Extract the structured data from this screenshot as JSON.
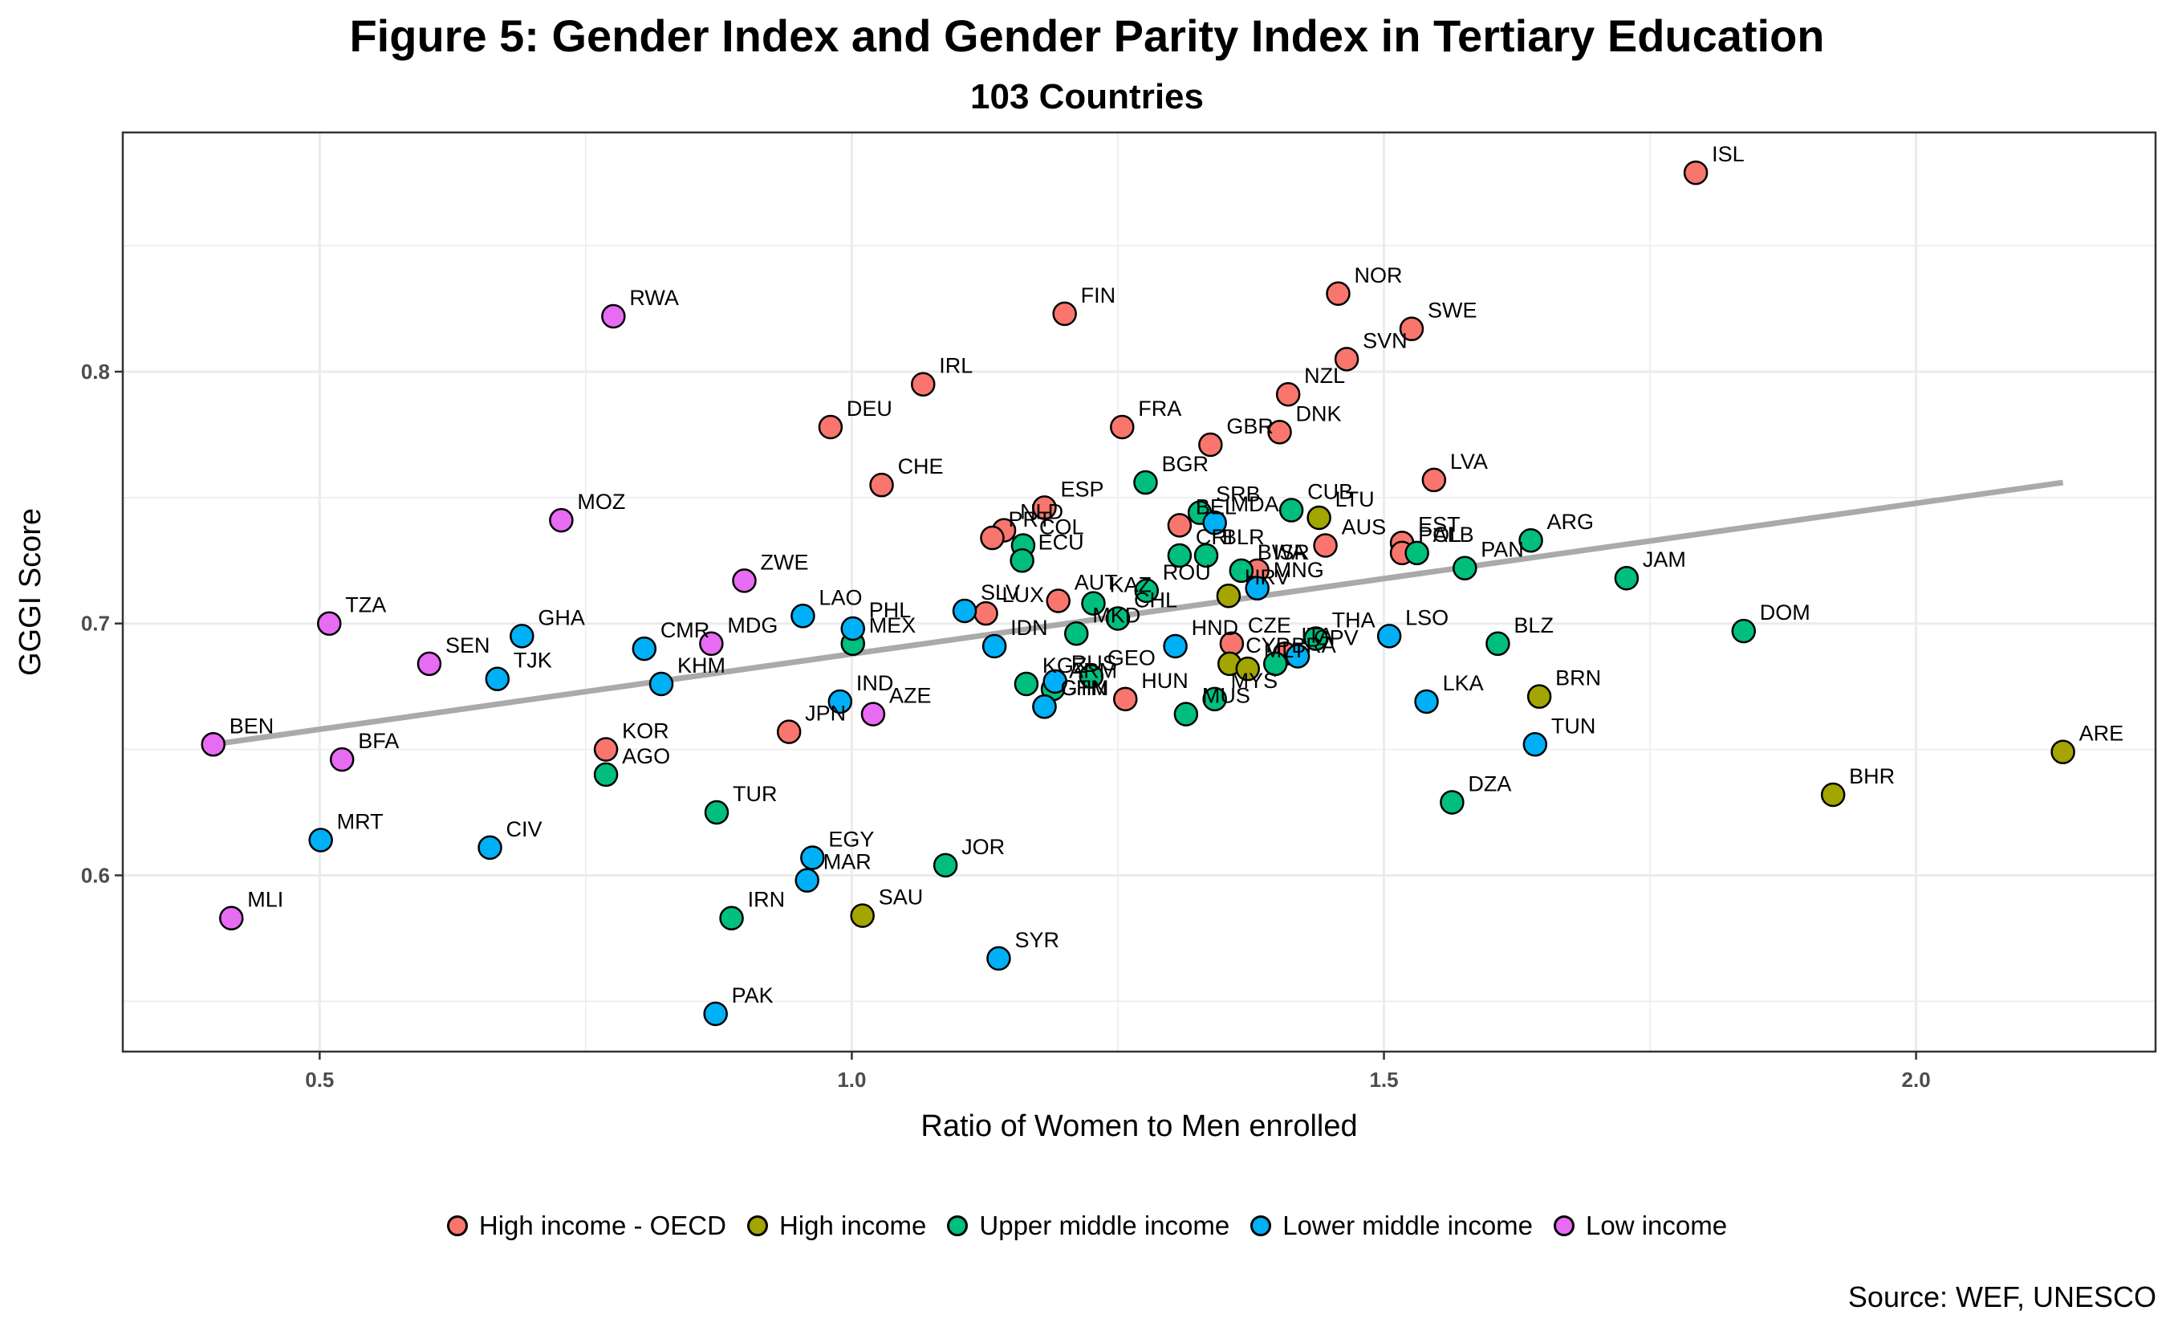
{
  "chart_data": {
    "type": "scatter",
    "title": "Figure 5: Gender Index and Gender Parity Index in Tertiary Education",
    "subtitle": "103 Countries",
    "xlabel": "Ratio of Women to Men enrolled",
    "ylabel": "GGGI Score",
    "xlim": [
      0.315,
      2.225
    ],
    "ylim": [
      0.53,
      0.895
    ],
    "xticks": [
      0.5,
      1.0,
      1.5,
      2.0
    ],
    "xtick_labels": [
      "0.5",
      "1.0",
      "1.5",
      "2.0"
    ],
    "yticks": [
      0.6,
      0.7,
      0.8
    ],
    "ytick_labels": [
      "0.6",
      "0.7",
      "0.8"
    ],
    "grid": true,
    "legend_position": "bottom",
    "source": "Source: WEF, UNESCO",
    "groups": [
      {
        "name": "High income - OECD",
        "color": "#F8766D"
      },
      {
        "name": "High income",
        "color": "#A3A500"
      },
      {
        "name": "Upper middle income",
        "color": "#00BF7D"
      },
      {
        "name": "Lower middle income",
        "color": "#00B0F6"
      },
      {
        "name": "Low income",
        "color": "#E76BF3"
      }
    ],
    "trend_line": {
      "x": [
        0.4,
        2.138
      ],
      "y": [
        0.652,
        0.756
      ],
      "color": "#aaaaaa"
    },
    "points": [
      {
        "label": "ISL",
        "group": 0,
        "x": 1.793,
        "y": 0.879
      },
      {
        "label": "NOR",
        "group": 0,
        "x": 1.457,
        "y": 0.831
      },
      {
        "label": "SWE",
        "group": 0,
        "x": 1.526,
        "y": 0.817
      },
      {
        "label": "SVN",
        "group": 0,
        "x": 1.465,
        "y": 0.805
      },
      {
        "label": "NZL",
        "group": 0,
        "x": 1.41,
        "y": 0.791
      },
      {
        "label": "DNK",
        "group": 0,
        "x": 1.402,
        "y": 0.776
      },
      {
        "label": "FIN",
        "group": 0,
        "x": 1.2,
        "y": 0.823
      },
      {
        "label": "IRL",
        "group": 0,
        "x": 1.067,
        "y": 0.795
      },
      {
        "label": "DEU",
        "group": 0,
        "x": 0.98,
        "y": 0.778
      },
      {
        "label": "CHE",
        "group": 0,
        "x": 1.028,
        "y": 0.755
      },
      {
        "label": "FRA",
        "group": 0,
        "x": 1.254,
        "y": 0.778
      },
      {
        "label": "GBR",
        "group": 0,
        "x": 1.337,
        "y": 0.771
      },
      {
        "label": "ESP",
        "group": 0,
        "x": 1.181,
        "y": 0.746
      },
      {
        "label": "LVA",
        "group": 0,
        "x": 1.547,
        "y": 0.757
      },
      {
        "label": "BEL",
        "group": 0,
        "x": 1.308,
        "y": 0.739
      },
      {
        "label": "AUS",
        "group": 0,
        "x": 1.445,
        "y": 0.731
      },
      {
        "label": "EST",
        "group": 0,
        "x": 1.517,
        "y": 0.732
      },
      {
        "label": "POL",
        "group": 0,
        "x": 1.517,
        "y": 0.728
      },
      {
        "label": "NLD",
        "group": 0,
        "x": 1.143,
        "y": 0.737
      },
      {
        "label": "PRT",
        "group": 0,
        "x": 1.132,
        "y": 0.734
      },
      {
        "label": "AUT",
        "group": 0,
        "x": 1.194,
        "y": 0.709
      },
      {
        "label": "LUX",
        "group": 0,
        "x": 1.126,
        "y": 0.704
      },
      {
        "label": "ISR",
        "group": 0,
        "x": 1.381,
        "y": 0.721
      },
      {
        "label": "CZE",
        "group": 0,
        "x": 1.357,
        "y": 0.692
      },
      {
        "label": "ITA",
        "group": 0,
        "x": 1.407,
        "y": 0.688
      },
      {
        "label": "HUN",
        "group": 0,
        "x": 1.257,
        "y": 0.67
      },
      {
        "label": "JPN",
        "group": 0,
        "x": 0.941,
        "y": 0.657
      },
      {
        "label": "KOR",
        "group": 0,
        "x": 0.769,
        "y": 0.65
      },
      {
        "label": "LTU",
        "group": 1,
        "x": 1.439,
        "y": 0.742
      },
      {
        "label": "HRV",
        "group": 1,
        "x": 1.354,
        "y": 0.711
      },
      {
        "label": "CYP",
        "group": 1,
        "x": 1.355,
        "y": 0.684
      },
      {
        "label": "MLT",
        "group": 1,
        "x": 1.372,
        "y": 0.682
      },
      {
        "label": "BRN",
        "group": 1,
        "x": 1.646,
        "y": 0.671
      },
      {
        "label": "BHR",
        "group": 1,
        "x": 1.922,
        "y": 0.632
      },
      {
        "label": "ARE",
        "group": 1,
        "x": 2.138,
        "y": 0.649
      },
      {
        "label": "SAU",
        "group": 1,
        "x": 1.01,
        "y": 0.584
      },
      {
        "label": "BGR",
        "group": 2,
        "x": 1.276,
        "y": 0.756
      },
      {
        "label": "CUB",
        "group": 2,
        "x": 1.413,
        "y": 0.745
      },
      {
        "label": "SRB",
        "group": 2,
        "x": 1.327,
        "y": 0.744
      },
      {
        "label": "BLR",
        "group": 2,
        "x": 1.333,
        "y": 0.727
      },
      {
        "label": "CRI",
        "group": 2,
        "x": 1.308,
        "y": 0.727
      },
      {
        "label": "BWA",
        "group": 2,
        "x": 1.366,
        "y": 0.721
      },
      {
        "label": "ALB",
        "group": 2,
        "x": 1.531,
        "y": 0.728
      },
      {
        "label": "ARG",
        "group": 2,
        "x": 1.638,
        "y": 0.733
      },
      {
        "label": "PAN",
        "group": 2,
        "x": 1.576,
        "y": 0.722
      },
      {
        "label": "JAM",
        "group": 2,
        "x": 1.728,
        "y": 0.718
      },
      {
        "label": "COL",
        "group": 2,
        "x": 1.161,
        "y": 0.731
      },
      {
        "label": "ECU",
        "group": 2,
        "x": 1.16,
        "y": 0.725
      },
      {
        "label": "KAZ",
        "group": 2,
        "x": 1.227,
        "y": 0.708
      },
      {
        "label": "ROU",
        "group": 2,
        "x": 1.277,
        "y": 0.713
      },
      {
        "label": "CHL",
        "group": 2,
        "x": 1.25,
        "y": 0.702
      },
      {
        "label": "MKD",
        "group": 2,
        "x": 1.211,
        "y": 0.696
      },
      {
        "label": "THA",
        "group": 2,
        "x": 1.436,
        "y": 0.694
      },
      {
        "label": "BLZ",
        "group": 2,
        "x": 1.607,
        "y": 0.692
      },
      {
        "label": "DOM",
        "group": 2,
        "x": 1.838,
        "y": 0.697
      },
      {
        "label": "MEX",
        "group": 2,
        "x": 1.001,
        "y": 0.692
      },
      {
        "label": "BRA",
        "group": 2,
        "x": 1.398,
        "y": 0.684
      },
      {
        "label": "KGZ",
        "group": 2,
        "x": 1.164,
        "y": 0.676
      },
      {
        "label": "GEO",
        "group": 2,
        "x": 1.225,
        "y": 0.679
      },
      {
        "label": "ARM",
        "group": 2,
        "x": 1.189,
        "y": 0.674
      },
      {
        "label": "MYS",
        "group": 2,
        "x": 1.341,
        "y": 0.67
      },
      {
        "label": "MUS",
        "group": 2,
        "x": 1.314,
        "y": 0.664
      },
      {
        "label": "AGO",
        "group": 2,
        "x": 0.769,
        "y": 0.64
      },
      {
        "label": "TUR",
        "group": 2,
        "x": 0.873,
        "y": 0.625
      },
      {
        "label": "DZA",
        "group": 2,
        "x": 1.564,
        "y": 0.629
      },
      {
        "label": "JOR",
        "group": 2,
        "x": 1.088,
        "y": 0.604
      },
      {
        "label": "IRN",
        "group": 2,
        "x": 0.887,
        "y": 0.583
      },
      {
        "label": "MDA",
        "group": 3,
        "x": 1.341,
        "y": 0.74
      },
      {
        "label": "MNG",
        "group": 3,
        "x": 1.381,
        "y": 0.714
      },
      {
        "label": "SLV",
        "group": 3,
        "x": 1.106,
        "y": 0.705
      },
      {
        "label": "LAO",
        "group": 3,
        "x": 0.954,
        "y": 0.703
      },
      {
        "label": "IDN",
        "group": 3,
        "x": 1.134,
        "y": 0.691
      },
      {
        "label": "HND",
        "group": 3,
        "x": 1.304,
        "y": 0.691
      },
      {
        "label": "CPV",
        "group": 3,
        "x": 1.419,
        "y": 0.687
      },
      {
        "label": "LSO",
        "group": 3,
        "x": 1.505,
        "y": 0.695
      },
      {
        "label": "LKA",
        "group": 3,
        "x": 1.54,
        "y": 0.669
      },
      {
        "label": "TUN",
        "group": 3,
        "x": 1.642,
        "y": 0.652
      },
      {
        "label": "PHL",
        "group": 3,
        "x": 1.001,
        "y": 0.698
      },
      {
        "label": "RUS",
        "group": 3,
        "x": 1.191,
        "y": 0.677
      },
      {
        "label": "CHN",
        "group": 3,
        "x": 1.181,
        "y": 0.667
      },
      {
        "label": "GTM",
        "group": 3,
        "x": 1.181,
        "y": 0.667
      },
      {
        "label": "IND",
        "group": 3,
        "x": 0.989,
        "y": 0.669
      },
      {
        "label": "GHA",
        "group": 3,
        "x": 0.69,
        "y": 0.695
      },
      {
        "label": "CMR",
        "group": 3,
        "x": 0.805,
        "y": 0.69
      },
      {
        "label": "TJK",
        "group": 3,
        "x": 0.667,
        "y": 0.678
      },
      {
        "label": "KHM",
        "group": 3,
        "x": 0.821,
        "y": 0.676
      },
      {
        "label": "MRT",
        "group": 3,
        "x": 0.501,
        "y": 0.614
      },
      {
        "label": "CIV",
        "group": 3,
        "x": 0.66,
        "y": 0.611
      },
      {
        "label": "EGY",
        "group": 3,
        "x": 0.963,
        "y": 0.607
      },
      {
        "label": "MAR",
        "group": 3,
        "x": 0.958,
        "y": 0.598
      },
      {
        "label": "SYR",
        "group": 3,
        "x": 1.138,
        "y": 0.567
      },
      {
        "label": "PAK",
        "group": 3,
        "x": 0.872,
        "y": 0.545
      },
      {
        "label": "RWA",
        "group": 4,
        "x": 0.776,
        "y": 0.822
      },
      {
        "label": "MOZ",
        "group": 4,
        "x": 0.727,
        "y": 0.741
      },
      {
        "label": "ZWE",
        "group": 4,
        "x": 0.899,
        "y": 0.717
      },
      {
        "label": "TZA",
        "group": 4,
        "x": 0.509,
        "y": 0.7
      },
      {
        "label": "SEN",
        "group": 4,
        "x": 0.603,
        "y": 0.684
      },
      {
        "label": "MDG",
        "group": 4,
        "x": 0.868,
        "y": 0.692
      },
      {
        "label": "AZE",
        "group": 4,
        "x": 1.02,
        "y": 0.664
      },
      {
        "label": "BEN",
        "group": 4,
        "x": 0.4,
        "y": 0.652
      },
      {
        "label": "BFA",
        "group": 4,
        "x": 0.521,
        "y": 0.646
      },
      {
        "label": "MLI",
        "group": 4,
        "x": 0.417,
        "y": 0.583
      }
    ]
  }
}
